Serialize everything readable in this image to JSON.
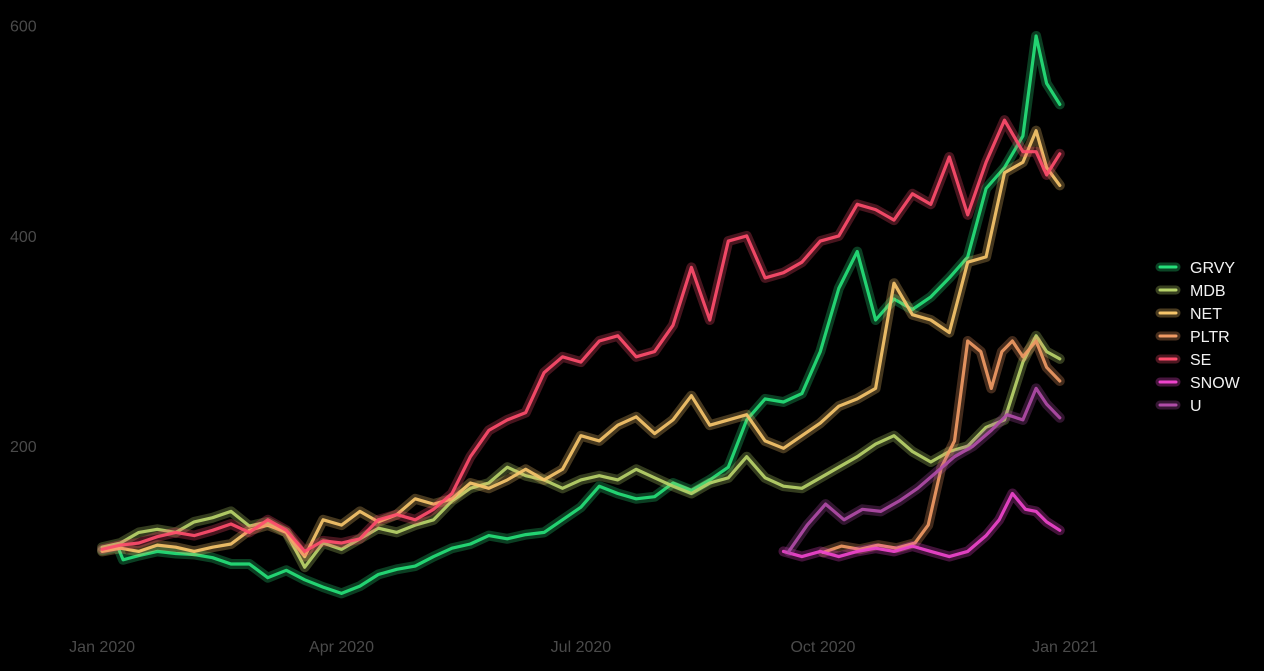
{
  "colors": {
    "background": "#000000",
    "tick_text": "#4a4a4a",
    "legend_text": "#f2f2f2"
  },
  "chart_data": {
    "type": "line",
    "title": "",
    "xlabel": "",
    "ylabel": "",
    "grid": false,
    "legend_placement": "right",
    "style": "glowing lines on black",
    "xlim": [
      "2019-12-16",
      "2021-01-20"
    ],
    "ylim": [
      30,
      610
    ],
    "x_ticks": [
      {
        "date": "2020-01-01",
        "label": "Jan 2020"
      },
      {
        "date": "2020-04-01",
        "label": "Apr 2020"
      },
      {
        "date": "2020-07-01",
        "label": "Jul 2020"
      },
      {
        "date": "2020-10-01",
        "label": "Oct 2020"
      },
      {
        "date": "2021-01-01",
        "label": "Jan 2021"
      }
    ],
    "y_ticks": [
      200,
      400,
      600
    ],
    "series": [
      {
        "name": "GRVY",
        "color": "#26e07a",
        "points": [
          [
            "2020-01-01",
            101
          ],
          [
            "2020-01-07",
            104
          ],
          [
            "2020-01-09",
            92
          ],
          [
            "2020-01-15",
            96
          ],
          [
            "2020-01-22",
            100
          ],
          [
            "2020-01-29",
            98
          ],
          [
            "2020-02-05",
            97
          ],
          [
            "2020-02-12",
            94
          ],
          [
            "2020-02-19",
            88
          ],
          [
            "2020-02-26",
            88
          ],
          [
            "2020-03-04",
            75
          ],
          [
            "2020-03-11",
            82
          ],
          [
            "2020-03-18",
            73
          ],
          [
            "2020-03-25",
            66
          ],
          [
            "2020-04-01",
            60
          ],
          [
            "2020-04-08",
            67
          ],
          [
            "2020-04-15",
            78
          ],
          [
            "2020-04-22",
            83
          ],
          [
            "2020-04-29",
            86
          ],
          [
            "2020-05-06",
            95
          ],
          [
            "2020-05-13",
            103
          ],
          [
            "2020-05-20",
            107
          ],
          [
            "2020-05-27",
            115
          ],
          [
            "2020-06-03",
            112
          ],
          [
            "2020-06-10",
            116
          ],
          [
            "2020-06-17",
            118
          ],
          [
            "2020-06-24",
            130
          ],
          [
            "2020-07-01",
            142
          ],
          [
            "2020-07-08",
            162
          ],
          [
            "2020-07-15",
            155
          ],
          [
            "2020-07-22",
            150
          ],
          [
            "2020-07-29",
            152
          ],
          [
            "2020-08-05",
            165
          ],
          [
            "2020-08-12",
            158
          ],
          [
            "2020-08-19",
            168
          ],
          [
            "2020-08-26",
            180
          ],
          [
            "2020-09-02",
            225
          ],
          [
            "2020-09-09",
            245
          ],
          [
            "2020-09-16",
            242
          ],
          [
            "2020-09-23",
            250
          ],
          [
            "2020-09-30",
            290
          ],
          [
            "2020-10-07",
            350
          ],
          [
            "2020-10-14",
            385
          ],
          [
            "2020-10-21",
            320
          ],
          [
            "2020-10-28",
            340
          ],
          [
            "2020-11-04",
            330
          ],
          [
            "2020-11-11",
            342
          ],
          [
            "2020-11-18",
            360
          ],
          [
            "2020-11-25",
            380
          ],
          [
            "2020-12-02",
            445
          ],
          [
            "2020-12-09",
            465
          ],
          [
            "2020-12-16",
            495
          ],
          [
            "2020-12-21",
            590
          ],
          [
            "2020-12-25",
            545
          ],
          [
            "2020-12-30",
            525
          ]
        ]
      },
      {
        "name": "MDB",
        "color": "#b8d46a",
        "points": [
          [
            "2020-01-01",
            104
          ],
          [
            "2020-01-08",
            108
          ],
          [
            "2020-01-15",
            118
          ],
          [
            "2020-01-22",
            121
          ],
          [
            "2020-01-29",
            118
          ],
          [
            "2020-02-05",
            128
          ],
          [
            "2020-02-12",
            132
          ],
          [
            "2020-02-19",
            138
          ],
          [
            "2020-02-26",
            124
          ],
          [
            "2020-03-04",
            128
          ],
          [
            "2020-03-11",
            118
          ],
          [
            "2020-03-18",
            85
          ],
          [
            "2020-03-25",
            108
          ],
          [
            "2020-04-01",
            102
          ],
          [
            "2020-04-08",
            112
          ],
          [
            "2020-04-15",
            122
          ],
          [
            "2020-04-22",
            118
          ],
          [
            "2020-04-29",
            125
          ],
          [
            "2020-05-06",
            130
          ],
          [
            "2020-05-13",
            148
          ],
          [
            "2020-05-20",
            160
          ],
          [
            "2020-05-27",
            165
          ],
          [
            "2020-06-03",
            180
          ],
          [
            "2020-06-10",
            172
          ],
          [
            "2020-06-17",
            168
          ],
          [
            "2020-06-24",
            160
          ],
          [
            "2020-07-01",
            168
          ],
          [
            "2020-07-08",
            172
          ],
          [
            "2020-07-15",
            168
          ],
          [
            "2020-07-22",
            178
          ],
          [
            "2020-07-29",
            170
          ],
          [
            "2020-08-05",
            162
          ],
          [
            "2020-08-12",
            155
          ],
          [
            "2020-08-19",
            165
          ],
          [
            "2020-08-26",
            170
          ],
          [
            "2020-09-02",
            190
          ],
          [
            "2020-09-09",
            170
          ],
          [
            "2020-09-16",
            162
          ],
          [
            "2020-09-23",
            160
          ],
          [
            "2020-09-30",
            170
          ],
          [
            "2020-10-07",
            180
          ],
          [
            "2020-10-14",
            190
          ],
          [
            "2020-10-21",
            202
          ],
          [
            "2020-10-28",
            210
          ],
          [
            "2020-11-04",
            195
          ],
          [
            "2020-11-11",
            185
          ],
          [
            "2020-11-18",
            195
          ],
          [
            "2020-11-25",
            200
          ],
          [
            "2020-12-02",
            218
          ],
          [
            "2020-12-09",
            225
          ],
          [
            "2020-12-16",
            280
          ],
          [
            "2020-12-21",
            305
          ],
          [
            "2020-12-25",
            290
          ],
          [
            "2020-12-30",
            283
          ]
        ]
      },
      {
        "name": "NET",
        "color": "#f7c66b",
        "points": [
          [
            "2020-01-01",
            100
          ],
          [
            "2020-01-08",
            103
          ],
          [
            "2020-01-15",
            100
          ],
          [
            "2020-01-22",
            106
          ],
          [
            "2020-01-29",
            104
          ],
          [
            "2020-02-05",
            100
          ],
          [
            "2020-02-12",
            104
          ],
          [
            "2020-02-19",
            107
          ],
          [
            "2020-02-26",
            120
          ],
          [
            "2020-03-04",
            125
          ],
          [
            "2020-03-11",
            118
          ],
          [
            "2020-03-18",
            95
          ],
          [
            "2020-03-25",
            130
          ],
          [
            "2020-04-01",
            125
          ],
          [
            "2020-04-08",
            138
          ],
          [
            "2020-04-15",
            128
          ],
          [
            "2020-04-22",
            135
          ],
          [
            "2020-04-29",
            150
          ],
          [
            "2020-05-06",
            145
          ],
          [
            "2020-05-13",
            150
          ],
          [
            "2020-05-20",
            165
          ],
          [
            "2020-05-27",
            160
          ],
          [
            "2020-06-03",
            168
          ],
          [
            "2020-06-10",
            178
          ],
          [
            "2020-06-17",
            168
          ],
          [
            "2020-06-24",
            178
          ],
          [
            "2020-07-01",
            210
          ],
          [
            "2020-07-08",
            205
          ],
          [
            "2020-07-15",
            220
          ],
          [
            "2020-07-22",
            228
          ],
          [
            "2020-07-29",
            212
          ],
          [
            "2020-08-05",
            225
          ],
          [
            "2020-08-12",
            248
          ],
          [
            "2020-08-19",
            220
          ],
          [
            "2020-08-26",
            225
          ],
          [
            "2020-09-02",
            230
          ],
          [
            "2020-09-09",
            205
          ],
          [
            "2020-09-16",
            198
          ],
          [
            "2020-09-23",
            210
          ],
          [
            "2020-09-30",
            222
          ],
          [
            "2020-10-07",
            238
          ],
          [
            "2020-10-14",
            245
          ],
          [
            "2020-10-21",
            255
          ],
          [
            "2020-10-28",
            355
          ],
          [
            "2020-11-04",
            325
          ],
          [
            "2020-11-11",
            320
          ],
          [
            "2020-11-18",
            308
          ],
          [
            "2020-11-25",
            375
          ],
          [
            "2020-12-02",
            380
          ],
          [
            "2020-12-09",
            460
          ],
          [
            "2020-12-16",
            470
          ],
          [
            "2020-12-21",
            500
          ],
          [
            "2020-12-25",
            465
          ],
          [
            "2020-12-30",
            448
          ]
        ]
      },
      {
        "name": "PLTR",
        "color": "#f09a64",
        "points": [
          [
            "2020-10-01",
            99
          ],
          [
            "2020-10-08",
            105
          ],
          [
            "2020-10-15",
            102
          ],
          [
            "2020-10-22",
            106
          ],
          [
            "2020-10-29",
            103
          ],
          [
            "2020-11-05",
            108
          ],
          [
            "2020-11-10",
            125
          ],
          [
            "2020-11-15",
            180
          ],
          [
            "2020-11-20",
            205
          ],
          [
            "2020-11-25",
            300
          ],
          [
            "2020-11-30",
            290
          ],
          [
            "2020-12-04",
            255
          ],
          [
            "2020-12-08",
            290
          ],
          [
            "2020-12-12",
            300
          ],
          [
            "2020-12-16",
            285
          ],
          [
            "2020-12-21",
            300
          ],
          [
            "2020-12-25",
            275
          ],
          [
            "2020-12-30",
            262
          ]
        ]
      },
      {
        "name": "SE",
        "color": "#ff4d6d",
        "points": [
          [
            "2020-01-01",
            102
          ],
          [
            "2020-01-08",
            106
          ],
          [
            "2020-01-15",
            108
          ],
          [
            "2020-01-22",
            114
          ],
          [
            "2020-01-29",
            118
          ],
          [
            "2020-02-05",
            115
          ],
          [
            "2020-02-12",
            120
          ],
          [
            "2020-02-19",
            126
          ],
          [
            "2020-02-26",
            118
          ],
          [
            "2020-03-04",
            130
          ],
          [
            "2020-03-11",
            120
          ],
          [
            "2020-03-18",
            100
          ],
          [
            "2020-03-25",
            110
          ],
          [
            "2020-04-01",
            108
          ],
          [
            "2020-04-08",
            112
          ],
          [
            "2020-04-15",
            130
          ],
          [
            "2020-04-22",
            135
          ],
          [
            "2020-04-29",
            130
          ],
          [
            "2020-05-06",
            140
          ],
          [
            "2020-05-13",
            155
          ],
          [
            "2020-05-20",
            190
          ],
          [
            "2020-05-27",
            215
          ],
          [
            "2020-06-03",
            225
          ],
          [
            "2020-06-10",
            232
          ],
          [
            "2020-06-17",
            270
          ],
          [
            "2020-06-24",
            285
          ],
          [
            "2020-07-01",
            280
          ],
          [
            "2020-07-08",
            300
          ],
          [
            "2020-07-15",
            305
          ],
          [
            "2020-07-22",
            285
          ],
          [
            "2020-07-29",
            290
          ],
          [
            "2020-08-05",
            315
          ],
          [
            "2020-08-12",
            370
          ],
          [
            "2020-08-19",
            320
          ],
          [
            "2020-08-26",
            395
          ],
          [
            "2020-09-02",
            400
          ],
          [
            "2020-09-09",
            360
          ],
          [
            "2020-09-16",
            365
          ],
          [
            "2020-09-23",
            375
          ],
          [
            "2020-09-30",
            395
          ],
          [
            "2020-10-07",
            400
          ],
          [
            "2020-10-14",
            430
          ],
          [
            "2020-10-21",
            425
          ],
          [
            "2020-10-28",
            415
          ],
          [
            "2020-11-04",
            440
          ],
          [
            "2020-11-11",
            430
          ],
          [
            "2020-11-18",
            475
          ],
          [
            "2020-11-25",
            420
          ],
          [
            "2020-12-02",
            470
          ],
          [
            "2020-12-09",
            510
          ],
          [
            "2020-12-16",
            480
          ],
          [
            "2020-12-21",
            480
          ],
          [
            "2020-12-25",
            458
          ],
          [
            "2020-12-30",
            478
          ]
        ]
      },
      {
        "name": "SNOW",
        "color": "#ee44cc",
        "points": [
          [
            "2020-09-16",
            100
          ],
          [
            "2020-09-23",
            95
          ],
          [
            "2020-09-30",
            100
          ],
          [
            "2020-10-07",
            95
          ],
          [
            "2020-10-14",
            100
          ],
          [
            "2020-10-21",
            103
          ],
          [
            "2020-10-28",
            100
          ],
          [
            "2020-11-04",
            105
          ],
          [
            "2020-11-11",
            100
          ],
          [
            "2020-11-18",
            95
          ],
          [
            "2020-11-25",
            100
          ],
          [
            "2020-12-02",
            115
          ],
          [
            "2020-12-07",
            130
          ],
          [
            "2020-12-12",
            155
          ],
          [
            "2020-12-17",
            140
          ],
          [
            "2020-12-21",
            138
          ],
          [
            "2020-12-25",
            128
          ],
          [
            "2020-12-30",
            120
          ]
        ]
      },
      {
        "name": "U",
        "color": "#b04ca8",
        "points": [
          [
            "2020-09-18",
            100
          ],
          [
            "2020-09-25",
            125
          ],
          [
            "2020-10-02",
            145
          ],
          [
            "2020-10-09",
            130
          ],
          [
            "2020-10-16",
            140
          ],
          [
            "2020-10-23",
            138
          ],
          [
            "2020-10-30",
            148
          ],
          [
            "2020-11-06",
            160
          ],
          [
            "2020-11-13",
            175
          ],
          [
            "2020-11-20",
            190
          ],
          [
            "2020-11-27",
            200
          ],
          [
            "2020-12-04",
            215
          ],
          [
            "2020-12-10",
            230
          ],
          [
            "2020-12-16",
            225
          ],
          [
            "2020-12-21",
            255
          ],
          [
            "2020-12-25",
            240
          ],
          [
            "2020-12-30",
            227
          ]
        ]
      }
    ]
  }
}
